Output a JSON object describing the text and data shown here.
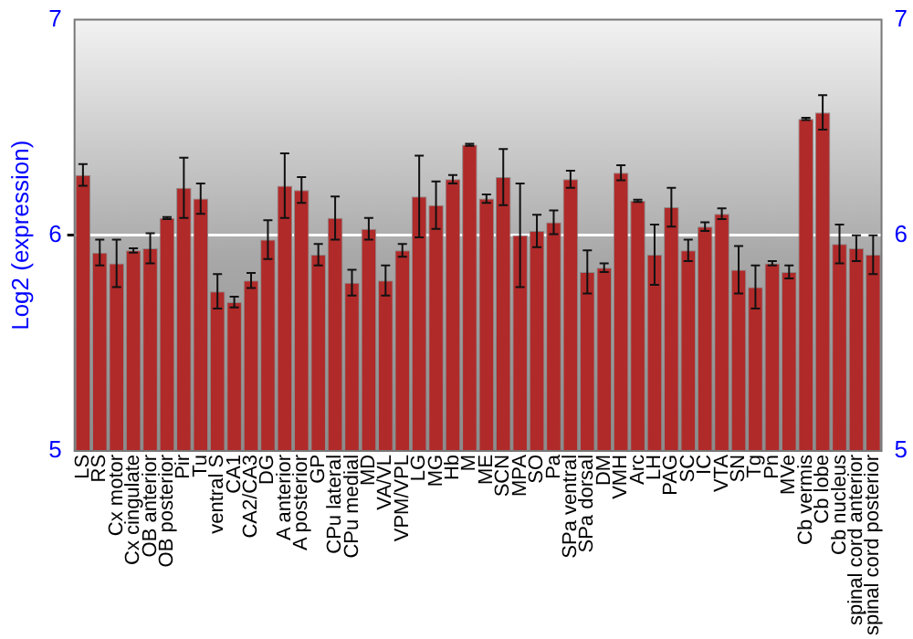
{
  "chart_data": {
    "type": "bar",
    "ylabel": "Log2 (expression)",
    "categories": [
      "LS",
      "RS",
      "Cx motor",
      "Cx cingulate",
      "OB anterior",
      "OB posterior",
      "Pir",
      "Tu",
      "ventral S",
      "CA1",
      "CA2/CA3",
      "DG",
      "A anterior",
      "A posterior",
      "GP",
      "CPu lateral",
      "CPu medial",
      "MD",
      "VA/VL",
      "VPM/VPL",
      "LG",
      "MG",
      "Hb",
      "M",
      "ME",
      "SCN",
      "MPA",
      "SO",
      "Pa",
      "SPa ventral",
      "SPa dorsal",
      "DM",
      "VMH",
      "Arc",
      "LH",
      "PAG",
      "SC",
      "IC",
      "VTA",
      "SN",
      "Tg",
      "Pn",
      "MVe",
      "Cb vermis",
      "Cb lobe",
      "Cb nucleus",
      "spinal cord anterior",
      "spinal cord posterior"
    ],
    "values": [
      6.28,
      5.92,
      5.87,
      5.93,
      5.94,
      6.08,
      6.22,
      6.17,
      5.74,
      5.69,
      5.79,
      5.98,
      6.23,
      6.21,
      5.91,
      6.08,
      5.78,
      6.03,
      5.79,
      5.93,
      6.18,
      6.14,
      6.26,
      6.42,
      6.17,
      6.27,
      6.0,
      6.02,
      6.06,
      6.26,
      5.83,
      5.85,
      6.29,
      6.16,
      5.91,
      6.13,
      5.93,
      6.04,
      6.1,
      5.84,
      5.76,
      5.87,
      5.83,
      6.54,
      6.57,
      5.96,
      5.94,
      5.91
    ],
    "errors": [
      0.05,
      0.06,
      0.11,
      0.01,
      0.07,
      0.005,
      0.14,
      0.07,
      0.08,
      0.025,
      0.035,
      0.09,
      0.15,
      0.06,
      0.05,
      0.1,
      0.06,
      0.05,
      0.07,
      0.03,
      0.19,
      0.11,
      0.02,
      0.005,
      0.02,
      0.13,
      0.24,
      0.075,
      0.055,
      0.04,
      0.1,
      0.02,
      0.035,
      0.005,
      0.14,
      0.09,
      0.05,
      0.02,
      0.025,
      0.11,
      0.1,
      0.01,
      0.03,
      0.005,
      0.08,
      0.09,
      0.06,
      0.09
    ],
    "color": "#b02a2a",
    "ylim": [
      5,
      7
    ],
    "yticks": [
      5,
      6,
      7
    ],
    "y2lim": [
      5,
      7
    ],
    "y2ticks": [
      5,
      6,
      7
    ],
    "grid": "y",
    "legend": false
  }
}
